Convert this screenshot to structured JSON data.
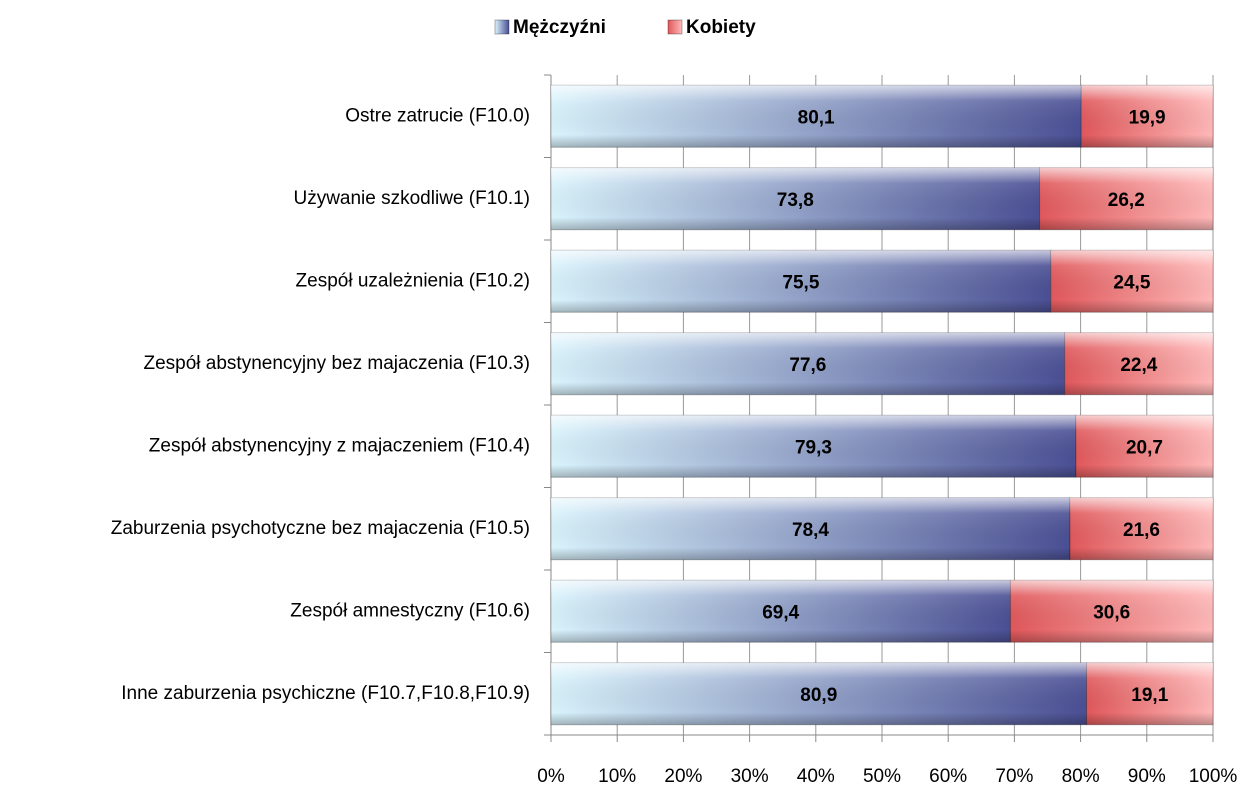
{
  "chart_data": {
    "type": "stacked-barh",
    "categories": [
      "Ostre zatrucie (F10.0)",
      "Używanie szkodliwe (F10.1)",
      "Zespół uzależnienia (F10.2)",
      "Zespół abstynencyjny bez majaczenia (F10.3)",
      "Zespół abstynencyjny z majaczeniem (F10.4)",
      "Zaburzenia psychotyczne bez majaczenia (F10.5)",
      "Zespół amnestyczny (F10.6)",
      "Inne zaburzenia psychiczne (F10.7,F10.8,F10.9)"
    ],
    "series": [
      {
        "name": "Mężczyźni",
        "color": "#4a4f94",
        "values": [
          80.1,
          73.8,
          75.5,
          77.6,
          79.3,
          78.4,
          69.4,
          80.9
        ],
        "value_labels": [
          "80,1",
          "73,8",
          "75,5",
          "77,6",
          "79,3",
          "78,4",
          "69,4",
          "80,9"
        ]
      },
      {
        "name": "Kobiety",
        "color": "#e0585b",
        "values": [
          19.9,
          26.2,
          24.5,
          22.4,
          20.7,
          21.6,
          30.6,
          19.1
        ],
        "value_labels": [
          "19,9",
          "26,2",
          "24,5",
          "22,4",
          "20,7",
          "21,6",
          "30,6",
          "19,1"
        ]
      }
    ],
    "xlim": [
      0,
      100
    ],
    "xticks": [
      {
        "value": 0,
        "label": "0%"
      },
      {
        "value": 10,
        "label": "10%"
      },
      {
        "value": 20,
        "label": "20%"
      },
      {
        "value": 30,
        "label": "30%"
      },
      {
        "value": 40,
        "label": "40%"
      },
      {
        "value": 50,
        "label": "50%"
      },
      {
        "value": 60,
        "label": "60%"
      },
      {
        "value": 70,
        "label": "70%"
      },
      {
        "value": 80,
        "label": "80%"
      },
      {
        "value": 90,
        "label": "90%"
      },
      {
        "value": 100,
        "label": "100%"
      }
    ],
    "grid": true,
    "legend": "top"
  }
}
